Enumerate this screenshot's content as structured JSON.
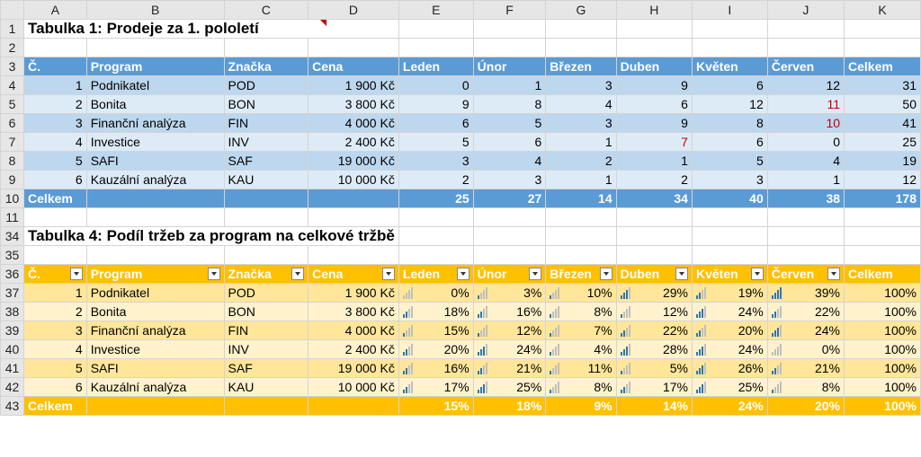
{
  "columns": [
    "A",
    "B",
    "C",
    "D",
    "E",
    "F",
    "G",
    "H",
    "I",
    "J",
    "K"
  ],
  "t1": {
    "title": "Tabulka 1: Prodeje za 1. pololetí",
    "headers": [
      "Č.",
      "Program",
      "Značka",
      "Cena",
      "Leden",
      "Únor",
      "Březen",
      "Duben",
      "Květen",
      "Červen",
      "Celkem"
    ],
    "rows": [
      {
        "n": "1",
        "prog": "Podnikatel",
        "zn": "POD",
        "cena": "1 900 Kč",
        "m": [
          "0",
          "1",
          "3",
          "9",
          "6",
          "12"
        ],
        "tot": "31"
      },
      {
        "n": "2",
        "prog": "Bonita",
        "zn": "BON",
        "cena": "3 800 Kč",
        "m": [
          "9",
          "8",
          "4",
          "6",
          "12",
          "11"
        ],
        "tot": "50"
      },
      {
        "n": "3",
        "prog": "Finanční analýza",
        "zn": "FIN",
        "cena": "4 000 Kč",
        "m": [
          "6",
          "5",
          "3",
          "9",
          "8",
          "10"
        ],
        "tot": "41"
      },
      {
        "n": "4",
        "prog": "Investice",
        "zn": "INV",
        "cena": "2 400 Kč",
        "m": [
          "5",
          "6",
          "1",
          "7",
          "6",
          "0"
        ],
        "tot": "25"
      },
      {
        "n": "5",
        "prog": "SAFI",
        "zn": "SAF",
        "cena": "19 000 Kč",
        "m": [
          "3",
          "4",
          "2",
          "1",
          "5",
          "4"
        ],
        "tot": "19"
      },
      {
        "n": "6",
        "prog": "Kauzální analýza",
        "zn": "KAU",
        "cena": "10 000 Kč",
        "m": [
          "2",
          "3",
          "1",
          "2",
          "3",
          "1"
        ],
        "tot": "12"
      }
    ],
    "total": {
      "label": "Celkem",
      "m": [
        "25",
        "27",
        "14",
        "34",
        "40",
        "38"
      ],
      "tot": "178"
    }
  },
  "t4": {
    "title": "Tabulka 4: Podíl tržeb za program na celkové tržbě",
    "headers": [
      "Č.",
      "Program",
      "Značka",
      "Cena",
      "Leden",
      "Únor",
      "Březen",
      "Duben",
      "Květen",
      "Červen",
      "Celkem"
    ],
    "rows": [
      {
        "n": "1",
        "prog": "Podnikatel",
        "zn": "POD",
        "cena": "1 900 Kč",
        "m": [
          "0%",
          "3%",
          "10%",
          "29%",
          "19%",
          "39%"
        ],
        "tot": "100%"
      },
      {
        "n": "2",
        "prog": "Bonita",
        "zn": "BON",
        "cena": "3 800 Kč",
        "m": [
          "18%",
          "16%",
          "8%",
          "12%",
          "24%",
          "22%"
        ],
        "tot": "100%"
      },
      {
        "n": "3",
        "prog": "Finanční analýza",
        "zn": "FIN",
        "cena": "4 000 Kč",
        "m": [
          "15%",
          "12%",
          "7%",
          "22%",
          "20%",
          "24%"
        ],
        "tot": "100%"
      },
      {
        "n": "4",
        "prog": "Investice",
        "zn": "INV",
        "cena": "2 400 Kč",
        "m": [
          "20%",
          "24%",
          "4%",
          "28%",
          "24%",
          "0%"
        ],
        "tot": "100%"
      },
      {
        "n": "5",
        "prog": "SAFI",
        "zn": "SAF",
        "cena": "19 000 Kč",
        "m": [
          "16%",
          "21%",
          "11%",
          "5%",
          "26%",
          "21%"
        ],
        "tot": "100%"
      },
      {
        "n": "6",
        "prog": "Kauzální analýza",
        "zn": "KAU",
        "cena": "10 000 Kč",
        "m": [
          "17%",
          "25%",
          "8%",
          "17%",
          "25%",
          "8%"
        ],
        "tot": "100%"
      }
    ],
    "total": {
      "label": "Celkem",
      "m": [
        "15%",
        "18%",
        "9%",
        "14%",
        "24%",
        "20%"
      ],
      "tot": "100%"
    }
  },
  "icon_levels": [
    [
      0,
      1,
      1,
      3,
      2,
      4
    ],
    [
      2,
      2,
      1,
      1,
      3,
      2
    ],
    [
      1,
      1,
      1,
      2,
      2,
      3
    ],
    [
      2,
      3,
      1,
      3,
      3,
      0
    ],
    [
      2,
      2,
      1,
      1,
      3,
      2
    ],
    [
      2,
      3,
      1,
      2,
      3,
      1
    ]
  ],
  "colors": {
    "blue_header": "#5b9bd5",
    "blue_row1": "#bdd7ee",
    "blue_row2": "#ddebf7",
    "orange_header": "#ffc000",
    "orange_row1": "#ffe699",
    "orange_row2": "#fff2cc",
    "red_text": "#c00000",
    "icon_on": "#2e75b6",
    "icon_off": "#bfbfbf"
  },
  "icons": {
    "filter_button": "dropdown-arrow-icon",
    "signal_bars": "signal-bars-icon",
    "comment_marker": "red-triangle-comment-icon"
  }
}
